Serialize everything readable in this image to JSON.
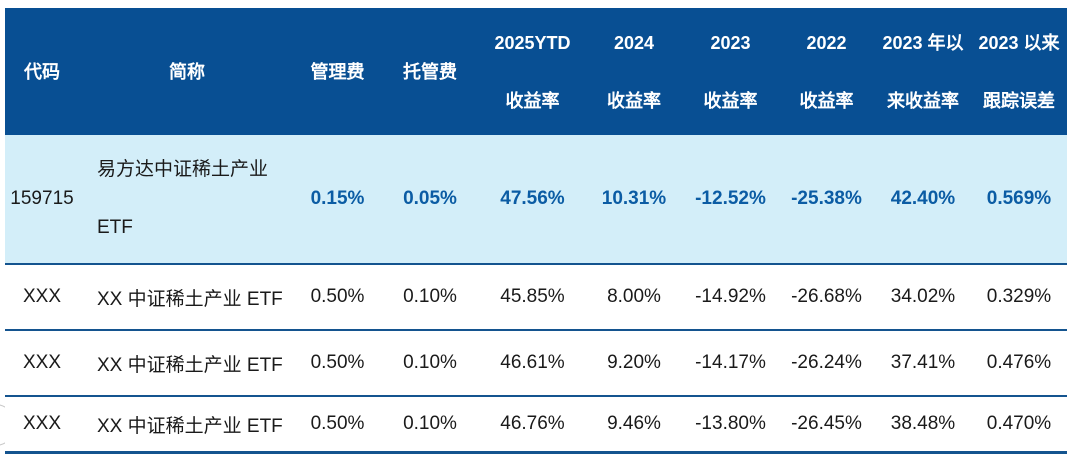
{
  "table": {
    "columns": [
      {
        "line1": "代码"
      },
      {
        "line1": "简称"
      },
      {
        "line1": "管理费"
      },
      {
        "line1": "托管费"
      },
      {
        "line1": "2025YTD",
        "line2": "收益率"
      },
      {
        "line1": "2024",
        "line2": "收益率"
      },
      {
        "line1": "2023",
        "line2": "收益率"
      },
      {
        "line1": "2022",
        "line2": "收益率"
      },
      {
        "line1": "2023 年以",
        "line2": "来收益率"
      },
      {
        "line1": "2023 以来",
        "line2": "跟踪误差"
      }
    ],
    "rows": [
      {
        "code": "159715",
        "name_line1": "易方达中证稀土产业",
        "name_line2": "ETF",
        "mgmt_fee": "0.15%",
        "custody_fee": "0.05%",
        "ytd_2025": "47.56%",
        "y2024": "10.31%",
        "y2023": "-12.52%",
        "y2022": "-25.38%",
        "since_2023": "42.40%",
        "tracking_error": "0.569%"
      },
      {
        "code": "XXX",
        "name_line1": "XX 中证稀土产业 ETF",
        "mgmt_fee": "0.50%",
        "custody_fee": "0.10%",
        "ytd_2025": "45.85%",
        "y2024": "8.00%",
        "y2023": "-14.92%",
        "y2022": "-26.68%",
        "since_2023": "34.02%",
        "tracking_error": "0.329%"
      },
      {
        "code": "XXX",
        "name_line1": "XX 中证稀土产业 ETF",
        "mgmt_fee": "0.50%",
        "custody_fee": "0.10%",
        "ytd_2025": "46.61%",
        "y2024": "9.20%",
        "y2023": "-14.17%",
        "y2022": "-26.24%",
        "since_2023": "37.41%",
        "tracking_error": "0.476%"
      },
      {
        "code": "XXX",
        "name_line1": "XX 中证稀土产业 ETF",
        "mgmt_fee": "0.50%",
        "custody_fee": "0.10%",
        "ytd_2025": "46.76%",
        "y2024": "9.46%",
        "y2023": "-13.80%",
        "y2022": "-26.45%",
        "since_2023": "38.48%",
        "tracking_error": "0.470%"
      }
    ]
  },
  "colors": {
    "header_bg": "#084F93",
    "header_text": "#FFFFFF",
    "highlight_bg": "#D3EEF9",
    "highlight_text": "#0B5CA4",
    "divider": "#14548F",
    "body_text": "#1A1A1A"
  }
}
